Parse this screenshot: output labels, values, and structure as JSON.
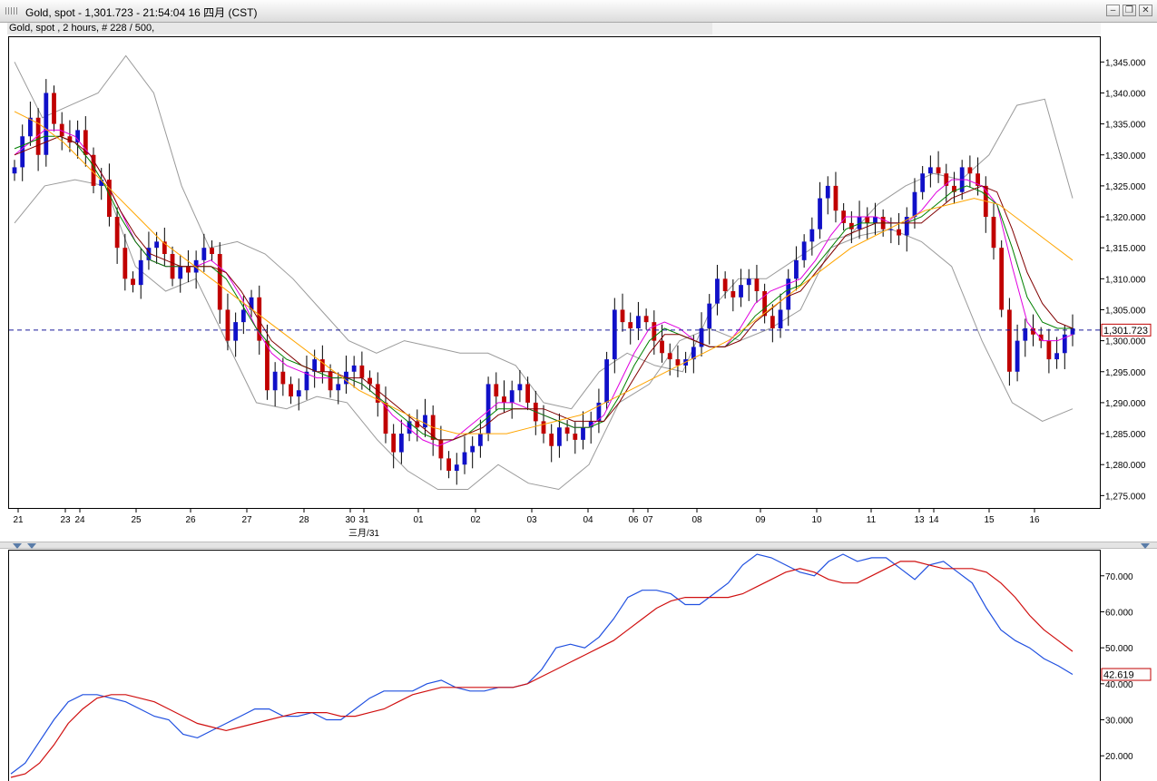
{
  "window": {
    "title": "Gold, spot - 1,301.723 - 21:54:04  16 四月 (CST)",
    "info": "Gold, spot , 2 hours, # 228 / 500,"
  },
  "chart_data": [
    {
      "type": "candlestick",
      "title": "",
      "ylim": [
        1273,
        1349
      ],
      "yticks": [
        1345,
        1340,
        1335,
        1330,
        1325,
        1320,
        1315,
        1310,
        1305,
        1300,
        1295,
        1290,
        1285,
        1280,
        1275
      ],
      "ytick_labels": [
        "1,345.000",
        "1,340.000",
        "1,335.000",
        "1,330.000",
        "1,325.000",
        "1,320.000",
        "1,315.000",
        "1,310.000",
        "1,305.000",
        "1,300.000",
        "1,295.000",
        "1,290.000",
        "1,285.000",
        "1,280.000",
        "1,275.000"
      ],
      "x_labels": [
        "21",
        "23",
        "24",
        "25",
        "26",
        "27",
        "28",
        "30",
        "31",
        "01",
        "02",
        "03",
        "04",
        "06",
        "07",
        "08",
        "09",
        "10",
        "11",
        "13",
        "14",
        "15",
        "16"
      ],
      "x_sublabel": "三月/31",
      "current_price": 1301.723,
      "current_price_label": "1,301.723",
      "grid": false,
      "series": [
        {
          "name": "",
          "kind": "close",
          "color": "#2020c0",
          "points": [
            1328,
            1333,
            1336,
            1330,
            1340,
            1335,
            1333,
            1332,
            1334,
            1330,
            1325,
            1326,
            1320,
            1315,
            1310,
            1309,
            1313,
            1315,
            1316,
            1314,
            1310,
            1312,
            1311,
            1313,
            1315,
            1314,
            1305,
            1300,
            1303,
            1305,
            1307,
            1300,
            1292,
            1295,
            1293,
            1291,
            1292,
            1295,
            1297,
            1295,
            1292,
            1293,
            1295,
            1296,
            1294,
            1293,
            1290,
            1285,
            1282,
            1285,
            1287,
            1286,
            1288,
            1284,
            1281,
            1279,
            1280,
            1282,
            1283,
            1285,
            1293,
            1291,
            1290,
            1292,
            1293,
            1290,
            1287,
            1285,
            1283,
            1286,
            1285,
            1284,
            1286,
            1287,
            1290,
            1297,
            1305,
            1303,
            1302,
            1304,
            1303,
            1300,
            1298,
            1297,
            1296,
            1297,
            1299,
            1302,
            1306,
            1310,
            1308,
            1307,
            1309,
            1310,
            1308,
            1304,
            1302,
            1305,
            1310,
            1313,
            1316,
            1318,
            1323,
            1325,
            1321,
            1319,
            1318,
            1320,
            1319,
            1320,
            1318,
            1318,
            1317,
            1320,
            1324,
            1327,
            1328,
            1327,
            1325,
            1324,
            1328,
            1327,
            1325,
            1320,
            1315,
            1305,
            1295,
            1300,
            1302,
            1301,
            1300,
            1297,
            1298,
            1301,
            1302
          ]
        },
        {
          "name": "",
          "kind": "indicator-magenta",
          "color": "#e000e0",
          "points": [
            1330,
            1332,
            1334,
            1334,
            1333,
            1330,
            1326,
            1321,
            1316,
            1313,
            1312,
            1312,
            1312,
            1313,
            1311,
            1307,
            1302,
            1298,
            1296,
            1295,
            1294,
            1294,
            1294,
            1293,
            1291,
            1288,
            1286,
            1284,
            1283,
            1284,
            1286,
            1288,
            1290,
            1290,
            1289,
            1288,
            1287,
            1286,
            1286,
            1288,
            1293,
            1298,
            1302,
            1303,
            1302,
            1300,
            1299,
            1299,
            1302,
            1306,
            1308,
            1309,
            1310,
            1313,
            1317,
            1320,
            1320,
            1320,
            1319,
            1319,
            1321,
            1324,
            1326,
            1326,
            1325,
            1322,
            1312,
            1303,
            1300,
            1300,
            1301
          ]
        },
        {
          "name": "",
          "kind": "indicator-green",
          "color": "#008000",
          "points": [
            1331,
            1332,
            1333,
            1333,
            1332,
            1329,
            1325,
            1320,
            1316,
            1313,
            1312,
            1312,
            1312,
            1312,
            1310,
            1306,
            1302,
            1299,
            1297,
            1296,
            1295,
            1294,
            1294,
            1293,
            1291,
            1289,
            1287,
            1285,
            1284,
            1284,
            1285,
            1287,
            1289,
            1289,
            1289,
            1288,
            1287,
            1286,
            1286,
            1287,
            1291,
            1296,
            1300,
            1302,
            1301,
            1300,
            1299,
            1299,
            1301,
            1304,
            1306,
            1308,
            1309,
            1312,
            1315,
            1318,
            1319,
            1319,
            1319,
            1319,
            1320,
            1322,
            1324,
            1325,
            1324,
            1322,
            1315,
            1307,
            1303,
            1302,
            1302
          ]
        },
        {
          "name": "",
          "kind": "indicator-maroon",
          "color": "#800000",
          "points": [
            1330,
            1331,
            1332,
            1333,
            1332,
            1330,
            1326,
            1321,
            1317,
            1314,
            1313,
            1312,
            1312,
            1312,
            1311,
            1308,
            1304,
            1300,
            1298,
            1296,
            1295,
            1295,
            1294,
            1294,
            1292,
            1290,
            1288,
            1286,
            1284,
            1284,
            1285,
            1286,
            1288,
            1289,
            1289,
            1289,
            1288,
            1287,
            1287,
            1287,
            1290,
            1294,
            1298,
            1301,
            1301,
            1300,
            1299,
            1299,
            1300,
            1303,
            1305,
            1307,
            1308,
            1311,
            1314,
            1317,
            1318,
            1319,
            1319,
            1319,
            1319,
            1321,
            1323,
            1324,
            1325,
            1324,
            1318,
            1311,
            1306,
            1303,
            1302
          ]
        },
        {
          "name": "",
          "kind": "indicator-orange",
          "color": "#ffa500",
          "points": [
            1337,
            1335,
            1332,
            1328,
            1324,
            1320,
            1316,
            1313,
            1310,
            1307,
            1304,
            1301,
            1298,
            1295,
            1292,
            1290,
            1288,
            1286,
            1285,
            1285,
            1285,
            1286,
            1287,
            1288,
            1290,
            1292,
            1294,
            1296,
            1298,
            1300,
            1303,
            1306,
            1309,
            1312,
            1315,
            1317,
            1319,
            1321,
            1322,
            1323,
            1322,
            1319,
            1316,
            1313
          ]
        },
        {
          "name": "",
          "kind": "band-upper",
          "color": "#9a9a9a",
          "points": [
            1345,
            1336,
            1338,
            1340,
            1346,
            1340,
            1325,
            1315,
            1316,
            1314,
            1310,
            1305,
            1300,
            1298,
            1300,
            1299,
            1298,
            1298,
            1296,
            1290,
            1289,
            1295,
            1298,
            1296,
            1295,
            1305,
            1310,
            1310,
            1313,
            1316,
            1317,
            1322,
            1325,
            1327,
            1326,
            1330,
            1338,
            1339,
            1323
          ]
        },
        {
          "name": "",
          "kind": "band-lower",
          "color": "#9a9a9a",
          "points": [
            1319,
            1325,
            1326,
            1325,
            1312,
            1308,
            1310,
            1300,
            1290,
            1289,
            1291,
            1290,
            1284,
            1279,
            1276,
            1276,
            1280,
            1277,
            1276,
            1280,
            1290,
            1293,
            1300,
            1302,
            1300,
            1302,
            1305,
            1315,
            1317,
            1318,
            1316,
            1312,
            1300,
            1290,
            1287,
            1289
          ]
        }
      ]
    },
    {
      "type": "line",
      "title": "",
      "ylim": [
        13,
        77
      ],
      "yticks": [
        70,
        60,
        50,
        40,
        30,
        20
      ],
      "ytick_labels": [
        "70.000",
        "60.000",
        "50.000",
        "40.000",
        "30.000",
        "20.000"
      ],
      "current_value_label": "42.619",
      "grid": false,
      "series": [
        {
          "name": "",
          "color": "#2050e0",
          "values": [
            15,
            18,
            24,
            30,
            35,
            37,
            37,
            36,
            35,
            33,
            31,
            30,
            26,
            25,
            27,
            29,
            31,
            33,
            33,
            31,
            31,
            32,
            30,
            30,
            33,
            36,
            38,
            38,
            38,
            40,
            41,
            39,
            38,
            38,
            39,
            39,
            40,
            44,
            50,
            51,
            50,
            53,
            58,
            64,
            66,
            66,
            65,
            62,
            62,
            65,
            68,
            73,
            76,
            75,
            73,
            71,
            70,
            74,
            76,
            74,
            75,
            75,
            72,
            69,
            73,
            74,
            71,
            68,
            61,
            55,
            52,
            50,
            47,
            45,
            42.6
          ]
        },
        {
          "name": "",
          "color": "#d01010",
          "values": [
            14,
            15,
            18,
            23,
            29,
            33,
            36,
            37,
            37,
            36,
            35,
            33,
            31,
            29,
            28,
            27,
            28,
            29,
            30,
            31,
            32,
            32,
            32,
            31,
            31,
            32,
            33,
            35,
            37,
            38,
            39,
            39,
            39,
            39,
            39,
            39,
            40,
            42,
            44,
            46,
            48,
            50,
            52,
            55,
            58,
            61,
            63,
            64,
            64,
            64,
            64,
            65,
            67,
            69,
            71,
            72,
            71,
            69,
            68,
            68,
            70,
            72,
            74,
            74,
            73,
            72,
            72,
            72,
            71,
            68,
            64,
            59,
            55,
            52,
            49
          ]
        }
      ]
    }
  ]
}
